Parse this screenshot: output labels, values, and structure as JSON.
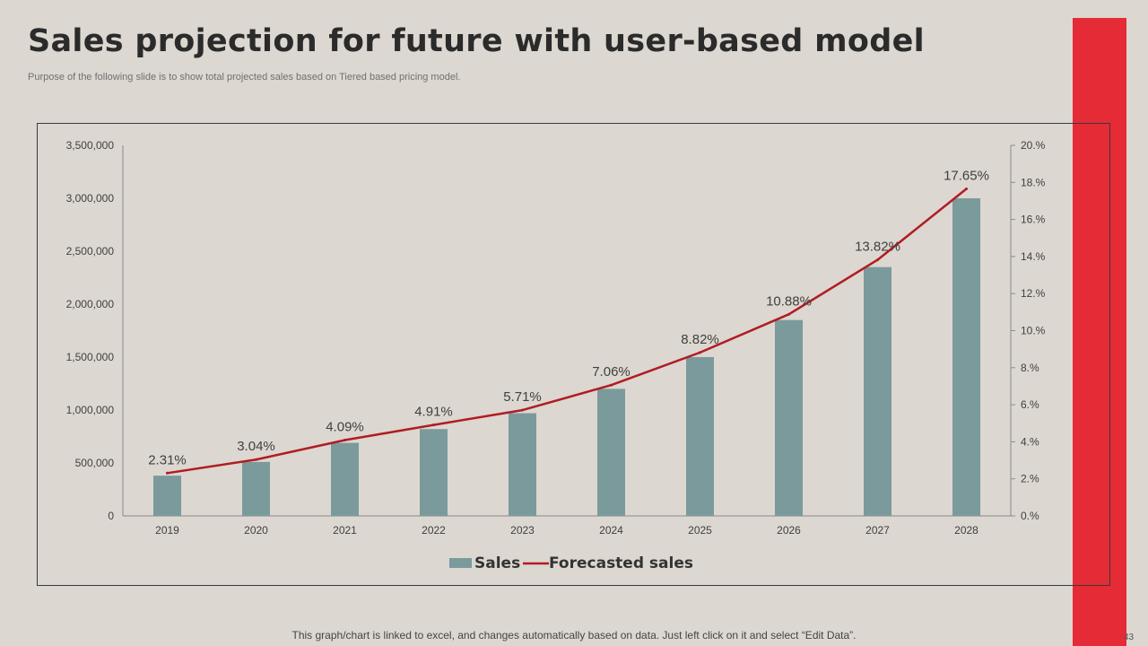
{
  "slide": {
    "title": "Sales projection for future with user-based model",
    "subtitle": "Purpose of the following slide is to show total projected sales based on Tiered based pricing model.",
    "footer": "This graph/chart is linked to excel, and changes automatically based on data. Just left click on it and select “Edit Data”.",
    "page_number": "43"
  },
  "colors": {
    "bar": "#7b9a9c",
    "line": "#b01c23",
    "accent": "#e42b36"
  },
  "chart_data": {
    "type": "bar",
    "categories": [
      "2019",
      "2020",
      "2021",
      "2022",
      "2023",
      "2024",
      "2025",
      "2026",
      "2027",
      "2028"
    ],
    "series": [
      {
        "name": "Sales",
        "type": "bar",
        "axis": "left",
        "values": [
          380000,
          510000,
          690000,
          820000,
          970000,
          1200000,
          1500000,
          1850000,
          2350000,
          3000000
        ]
      },
      {
        "name": "Forecasted sales",
        "type": "line",
        "axis": "right",
        "values": [
          2.31,
          3.04,
          4.09,
          4.91,
          5.71,
          7.06,
          8.82,
          10.88,
          13.82,
          17.65
        ],
        "labels": [
          "2.31%",
          "3.04%",
          "4.09%",
          "4.91%",
          "5.71%",
          "7.06%",
          "8.82%",
          "10.88%",
          "13.82%",
          "17.65%"
        ]
      }
    ],
    "y_left": {
      "lim": [
        0,
        3500000
      ],
      "ticks": [
        0,
        500000,
        1000000,
        1500000,
        2000000,
        2500000,
        3000000,
        3500000
      ],
      "tick_labels": [
        "0",
        "500,000",
        "1,000,000",
        "1,500,000",
        "2,000,000",
        "2,500,000",
        "3,000,000",
        "3,500,000"
      ]
    },
    "y_right": {
      "lim": [
        0,
        20
      ],
      "ticks": [
        0,
        2,
        4,
        6,
        8,
        10,
        12,
        14,
        16,
        18,
        20
      ],
      "tick_labels": [
        "0.%",
        "2.%",
        "4.%",
        "6.%",
        "8.%",
        "10.%",
        "12.%",
        "14.%",
        "16.%",
        "18.%",
        "20.%"
      ]
    },
    "legend": {
      "position": "bottom",
      "items": [
        "Sales",
        "Forecasted sales"
      ]
    }
  }
}
